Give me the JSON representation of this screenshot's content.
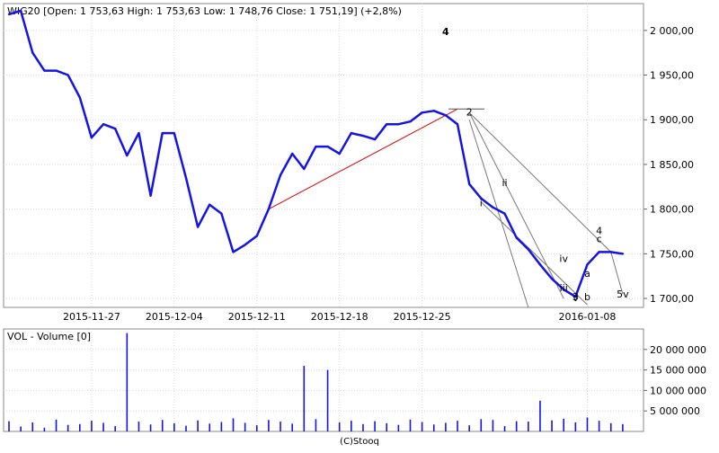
{
  "chart_data": [
    {
      "type": "line",
      "title": "WIG20 [Open: 1 753,63  High: 1 753,63  Low: 1 748,76  Close: 1 751,19] (+2,8%)",
      "ylim": [
        1690,
        2030
      ],
      "y_ticks": [
        "1 700,00",
        "1 750,00",
        "1 800,00",
        "1 850,00",
        "1 900,00",
        "1 950,00",
        "2 000,00"
      ],
      "y_tick_values": [
        1700,
        1750,
        1800,
        1850,
        1900,
        1950,
        2000
      ],
      "x_ticks": [
        "2015-11-27",
        "2015-12-04",
        "2015-12-11",
        "2015-12-18",
        "2015-12-25",
        "2016-01-08"
      ],
      "grid": true,
      "series": [
        {
          "color": "#1414e6",
          "x": [
            "2015-11-20",
            "2015-11-21",
            "2015-11-22",
            "2015-11-23",
            "2015-11-24",
            "2015-11-25",
            "2015-11-26",
            "2015-11-27",
            "2015-11-28",
            "2015-11-29",
            "2015-11-30",
            "2015-12-01",
            "2015-12-02",
            "2015-12-03",
            "2015-12-04",
            "2015-12-05",
            "2015-12-06",
            "2015-12-07",
            "2015-12-08",
            "2015-12-09",
            "2015-12-10",
            "2015-12-11",
            "2015-12-12",
            "2015-12-13",
            "2015-12-14",
            "2015-12-15",
            "2015-12-16",
            "2015-12-17",
            "2015-12-18",
            "2015-12-19",
            "2015-12-20",
            "2015-12-21",
            "2015-12-22",
            "2015-12-23",
            "2015-12-24",
            "2015-12-25",
            "2015-12-26",
            "2015-12-27",
            "2015-12-28",
            "2015-12-29",
            "2015-12-30",
            "2015-12-31",
            "2016-01-01",
            "2016-01-02",
            "2016-01-03",
            "2016-01-04",
            "2016-01-05",
            "2016-01-06",
            "2016-01-07",
            "2016-01-08",
            "2016-01-09",
            "2016-01-10",
            "2016-01-11"
          ],
          "values": [
            2018,
            2022,
            1975,
            1955,
            1955,
            1950,
            1925,
            1880,
            1895,
            1890,
            1860,
            1885,
            1815,
            1885,
            1885,
            1835,
            1780,
            1805,
            1795,
            1752,
            1760,
            1770,
            1800,
            1838,
            1862,
            1845,
            1870,
            1870,
            1862,
            1885,
            1882,
            1878,
            1895,
            1895,
            1898,
            1908,
            1910,
            1905,
            1895,
            1828,
            1812,
            1802,
            1795,
            1768,
            1755,
            1738,
            1722,
            1710,
            1702,
            1738,
            1752,
            1752,
            1750
          ]
        }
      ],
      "annotations": {
        "wave_labels": [
          {
            "text": "4",
            "color": "#cc0000",
            "x": "2015-12-27",
            "y": 1995
          },
          {
            "text": "2",
            "color": "#666666",
            "x": "2015-12-29",
            "y": 1905
          },
          {
            "text": "ii",
            "color": "#666666",
            "x": "2016-01-01",
            "y": 1826
          },
          {
            "text": "i",
            "color": "#666666",
            "x": "2015-12-30",
            "y": 1803
          },
          {
            "text": "iv",
            "color": "#666666",
            "x": "2016-01-06",
            "y": 1741
          },
          {
            "text": "iii",
            "color": "#666666",
            "x": "2016-01-06",
            "y": 1708
          },
          {
            "text": "a",
            "color": "#666666",
            "x": "2016-01-08",
            "y": 1724
          },
          {
            "text": "v",
            "color": "#666666",
            "x": "2016-01-07",
            "y": 1697
          },
          {
            "text": "3",
            "color": "#666666",
            "x": "2016-01-07",
            "y": 1698
          },
          {
            "text": "b",
            "color": "#666666",
            "x": "2016-01-08",
            "y": 1698
          },
          {
            "text": "4",
            "color": "#666666",
            "x": "2016-01-09",
            "y": 1772
          },
          {
            "text": "c",
            "color": "#666666",
            "x": "2016-01-09",
            "y": 1763
          },
          {
            "text": "5v",
            "color": "#666666",
            "x": "2016-01-11",
            "y": 1701
          }
        ]
      }
    },
    {
      "type": "bar",
      "title": "VOL - Volume [0]",
      "ylim": [
        0,
        25000000
      ],
      "y_ticks": [
        "5 000 000",
        "10 000 000",
        "15 000 000",
        "20 000 000"
      ],
      "y_tick_values": [
        5000000,
        10000000,
        15000000,
        20000000
      ],
      "footer": "(C)Stooq",
      "series": [
        {
          "color": "#1414e6",
          "x": [
            "2015-11-20",
            "2015-11-21",
            "2015-11-22",
            "2015-11-23",
            "2015-11-24",
            "2015-11-25",
            "2015-11-26",
            "2015-11-27",
            "2015-11-28",
            "2015-11-29",
            "2015-11-30",
            "2015-12-01",
            "2015-12-02",
            "2015-12-03",
            "2015-12-04",
            "2015-12-05",
            "2015-12-06",
            "2015-12-07",
            "2015-12-08",
            "2015-12-09",
            "2015-12-10",
            "2015-12-11",
            "2015-12-12",
            "2015-12-13",
            "2015-12-14",
            "2015-12-15",
            "2015-12-16",
            "2015-12-17",
            "2015-12-18",
            "2015-12-19",
            "2015-12-20",
            "2015-12-21",
            "2015-12-22",
            "2015-12-23",
            "2015-12-24",
            "2015-12-25",
            "2015-12-26",
            "2015-12-27",
            "2015-12-28",
            "2015-12-29",
            "2015-12-30",
            "2015-12-31",
            "2016-01-01",
            "2016-01-02",
            "2016-01-03",
            "2016-01-04",
            "2016-01-05",
            "2016-01-06",
            "2016-01-07",
            "2016-01-08",
            "2016-01-09",
            "2016-01-10",
            "2016-01-11"
          ],
          "values": [
            2500000,
            1200000,
            2200000,
            900000,
            2900000,
            1600000,
            1800000,
            2600000,
            2100000,
            1300000,
            24000000,
            2400000,
            1700000,
            2800000,
            2000000,
            1400000,
            2700000,
            1900000,
            2300000,
            3200000,
            2100000,
            1500000,
            2800000,
            2400000,
            1900000,
            16000000,
            3000000,
            15000000,
            2200000,
            2600000,
            1800000,
            2500000,
            2000000,
            1600000,
            2900000,
            2300000,
            1700000,
            2100000,
            2600000,
            1500000,
            3000000,
            2800000,
            1300000,
            2500000,
            2400000,
            7500000,
            2700000,
            3100000,
            2200000,
            3400000,
            2600000,
            2000000,
            1800000
          ]
        }
      ]
    }
  ]
}
